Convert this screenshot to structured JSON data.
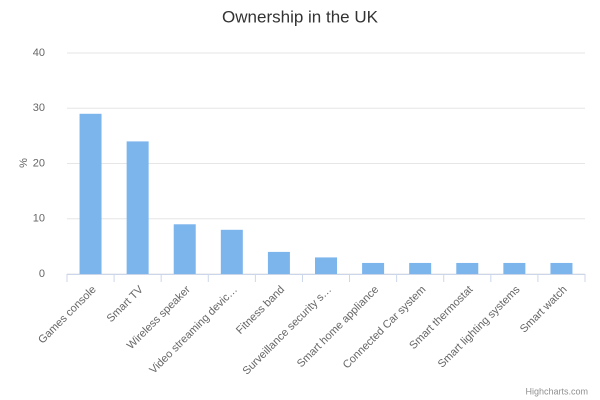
{
  "chart_data": {
    "type": "bar",
    "title": "Ownership in the UK",
    "y_label": "%",
    "categories": [
      "Games console",
      "Smart TV",
      "Wireless speaker",
      "Video streaming devic…",
      "Fitness band",
      "Surveillance security s…",
      "Smart home appliance",
      "Connected Car system",
      "Smart thermostat",
      "Smart lighting systems",
      "Smart watch"
    ],
    "values": [
      29,
      24,
      9,
      8,
      4,
      3,
      2,
      2,
      2,
      2,
      2
    ],
    "color": "#7cb5ec",
    "ylim": [
      0,
      40
    ],
    "yticks": [
      0,
      10,
      20,
      30,
      40
    ],
    "grid": true,
    "credits": "Highcharts.com"
  }
}
